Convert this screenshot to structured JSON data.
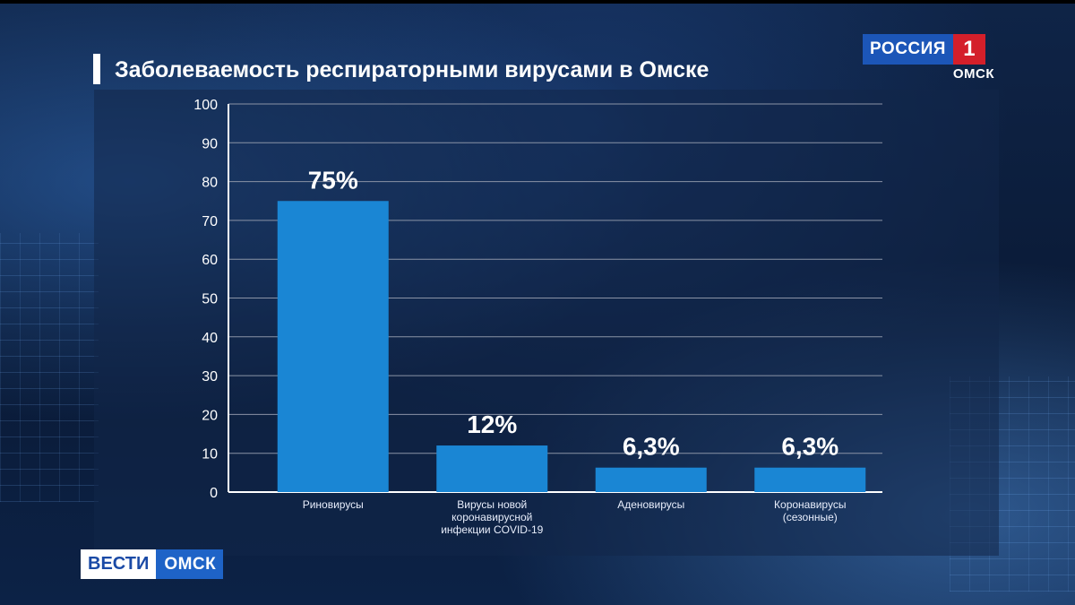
{
  "title": "Заболеваемость респираторными вирусами в Омске",
  "channel": {
    "name": "РОССИЯ",
    "number": "1",
    "city": "ОМСК"
  },
  "program": {
    "name": "ВЕСТИ",
    "city": "ОМСК"
  },
  "colors": {
    "bar": "#1a86d4",
    "grid": "#8a93a6",
    "panel": "#122648"
  },
  "chart_data": {
    "type": "bar",
    "title": "Заболеваемость респираторными вирусами в Омске",
    "categories": [
      [
        "Риновирусы"
      ],
      [
        "Вирусы новой",
        "коронавирусной",
        "инфекции COVID-19"
      ],
      [
        "Аденовирусы"
      ],
      [
        "Коронавирусы",
        "(сезонные)"
      ]
    ],
    "values": [
      75,
      12,
      6.3,
      6.3
    ],
    "data_labels": [
      "75%",
      "12%",
      "6,3%",
      "6,3%"
    ],
    "yticks": [
      0,
      10,
      20,
      30,
      40,
      50,
      60,
      70,
      80,
      90,
      100
    ],
    "ylim": [
      0,
      100
    ],
    "grid": true
  }
}
